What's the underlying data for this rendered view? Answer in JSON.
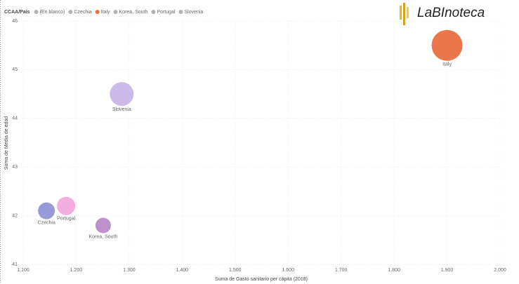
{
  "logo": "LaBInoteca",
  "chart_data": {
    "type": "bubble",
    "legend_title": "CCAA/País",
    "legend": [
      {
        "name": "(En blanco)",
        "color": "#b3b3b3"
      },
      {
        "name": "Czechia",
        "color": "#b3b3b3"
      },
      {
        "name": "Italy",
        "color": "#e8703f"
      },
      {
        "name": "Korea, South",
        "color": "#b3b3b3"
      },
      {
        "name": "Portugal",
        "color": "#b3b3b3"
      },
      {
        "name": "Slovenia",
        "color": "#b3b3b3"
      }
    ],
    "series": [
      {
        "name": "Italy",
        "color": "#e8703f",
        "x": [
          1900
        ],
        "values": [
          45.5
        ],
        "sizes": [
          22
        ]
      },
      {
        "name": "Slovenia",
        "color": "#c9b6ea",
        "x": [
          1286
        ],
        "values": [
          44.5
        ],
        "sizes": [
          17
        ]
      },
      {
        "name": "Czechia",
        "color": "#9095d6",
        "x": [
          1144
        ],
        "values": [
          42.1
        ],
        "sizes": [
          12
        ]
      },
      {
        "name": "Portugal",
        "color": "#f2a9de",
        "x": [
          1181
        ],
        "values": [
          42.2
        ],
        "sizes": [
          13
        ]
      },
      {
        "name": "Korea, South",
        "color": "#b98bc8",
        "x": [
          1251
        ],
        "values": [
          41.8
        ],
        "sizes": [
          11
        ]
      }
    ],
    "x_label": "Suma de Gasto sanitario per cápita (2018)",
    "y_label": "Suma de Media de edad",
    "xlim": [
      1100,
      2000
    ],
    "xticks": [
      {
        "value": 1100,
        "label": "1.100"
      },
      {
        "value": 1200,
        "label": "1.200"
      },
      {
        "value": 1300,
        "label": "1.300"
      },
      {
        "value": 1400,
        "label": "1.400"
      },
      {
        "value": 1500,
        "label": "1.500"
      },
      {
        "value": 1600,
        "label": "1.600"
      },
      {
        "value": 1700,
        "label": "1.700"
      },
      {
        "value": 1800,
        "label": "1.800"
      },
      {
        "value": 1900,
        "label": "1.900"
      },
      {
        "value": 2000,
        "label": "2.000"
      }
    ],
    "ylim": [
      41,
      46
    ],
    "yticks": [
      41,
      42,
      43,
      44,
      45,
      46
    ],
    "grid": true
  }
}
